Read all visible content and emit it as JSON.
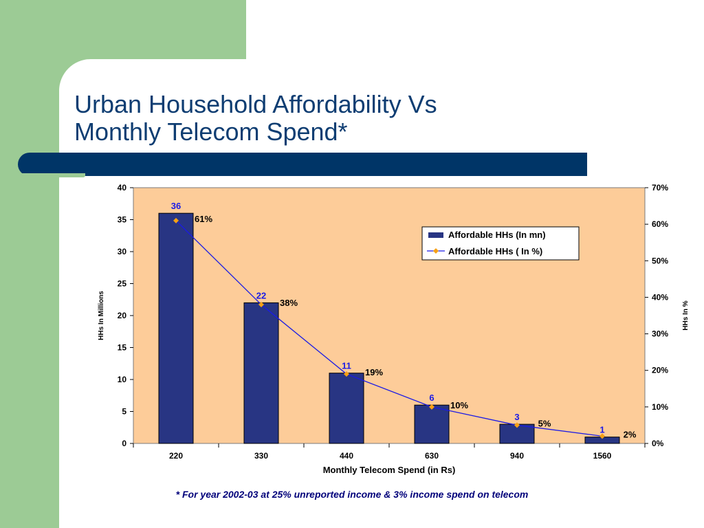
{
  "slide": {
    "title_line1": "Urban Household Affordability Vs",
    "title_line2": "Monthly Telecom Spend*",
    "footnote": "*  For year 2002-03  at 25% unreported income & 3% income spend on telecom"
  },
  "colors": {
    "side_green": "#9ccb95",
    "band_navy": "#003567",
    "title_blue": "#0e3d72",
    "plot_bg": "#fdcc99",
    "bar_fill": "#283583",
    "line_blue": "#1a1ae6",
    "marker_orange": "#f5a016",
    "bar_label_blue": "#1a1ae6"
  },
  "chart_data": {
    "type": "bar",
    "categories": [
      "220",
      "330",
      "440",
      "630",
      "940",
      "1560"
    ],
    "series": [
      {
        "name": "Affordable HHs (In mn)",
        "type": "bar",
        "axis": "left",
        "values": [
          36,
          22,
          11,
          6,
          3,
          1
        ],
        "labels": [
          "36",
          "22",
          "11",
          "6",
          "3",
          "1"
        ]
      },
      {
        "name": "Affordable HHs ( In %)",
        "type": "line",
        "axis": "right",
        "values": [
          61,
          38,
          19,
          10,
          5,
          2
        ],
        "labels": [
          "61%",
          "38%",
          "19%",
          "10%",
          "5%",
          "2%"
        ]
      }
    ],
    "xlabel": "Monthly Telecom Spend (in Rs)",
    "ylabel": "HHs In  Millions",
    "y2label": "HHs In %",
    "ylim": [
      0,
      40
    ],
    "yticks": [
      0,
      5,
      10,
      15,
      20,
      25,
      30,
      35,
      40
    ],
    "y2lim": [
      0,
      70
    ],
    "y2ticks": [
      "0%",
      "10%",
      "20%",
      "30%",
      "40%",
      "50%",
      "60%",
      "70%"
    ],
    "legend": "top-right",
    "grid": false
  }
}
